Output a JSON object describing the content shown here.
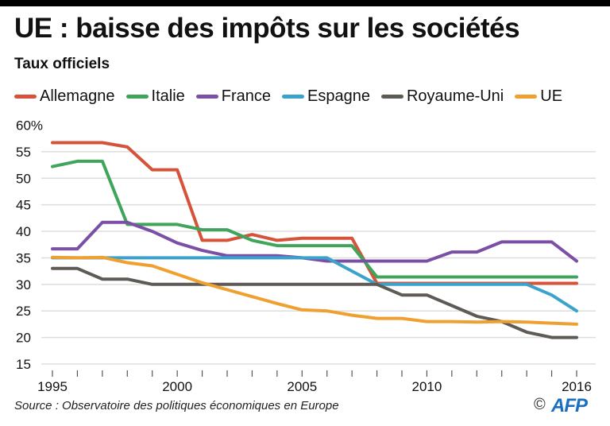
{
  "header": {
    "title": "UE : baisse des impôts sur les sociétés",
    "subtitle": "Taux officiels"
  },
  "footer": {
    "source": "Source : Observatoire des politiques économiques en Europe",
    "copyright": "©",
    "logo": "AFP"
  },
  "chart_data": {
    "type": "line",
    "title": "UE : baisse des impôts sur les sociétés",
    "subtitle": "Taux officiels",
    "xlabel": "",
    "ylabel": "",
    "x": [
      1995,
      1996,
      1997,
      1998,
      1999,
      2000,
      2001,
      2002,
      2003,
      2004,
      2005,
      2006,
      2007,
      2008,
      2009,
      2010,
      2011,
      2012,
      2013,
      2014,
      2015,
      2016
    ],
    "xticks": [
      1995,
      1996,
      1997,
      1998,
      1999,
      2000,
      2001,
      2002,
      2003,
      2004,
      2005,
      2006,
      2007,
      2008,
      2009,
      2010,
      2011,
      2012,
      2013,
      2014,
      2015,
      2016
    ],
    "xtick_labels": [
      {
        "year": 1995,
        "label": "1995"
      },
      {
        "year": 2000,
        "label": "2000"
      },
      {
        "year": 2005,
        "label": "2005"
      },
      {
        "year": 2010,
        "label": "2010"
      },
      {
        "year": 2016,
        "label": "2016"
      }
    ],
    "ylim": [
      15,
      60
    ],
    "yticks": [
      {
        "value": 60,
        "label": "60%"
      },
      {
        "value": 55,
        "label": "55"
      },
      {
        "value": 50,
        "label": "50"
      },
      {
        "value": 45,
        "label": "45"
      },
      {
        "value": 40,
        "label": "40"
      },
      {
        "value": 35,
        "label": "35"
      },
      {
        "value": 30,
        "label": "30"
      },
      {
        "value": 25,
        "label": "25"
      },
      {
        "value": 20,
        "label": "20"
      },
      {
        "value": 15,
        "label": "15"
      }
    ],
    "grid": true,
    "legend_position": "top",
    "series": [
      {
        "name": "Allemagne",
        "color": "#d5533a",
        "values": [
          56.7,
          56.7,
          56.7,
          55.9,
          51.6,
          51.6,
          38.3,
          38.3,
          39.4,
          38.3,
          38.7,
          38.7,
          38.7,
          30.2,
          30.2,
          30.2,
          30.2,
          30.2,
          30.2,
          30.2,
          30.2,
          30.2
        ]
      },
      {
        "name": "Italie",
        "color": "#3fa55b",
        "values": [
          52.2,
          53.2,
          53.2,
          41.3,
          41.3,
          41.3,
          40.3,
          40.3,
          38.3,
          37.3,
          37.3,
          37.3,
          37.3,
          31.4,
          31.4,
          31.4,
          31.4,
          31.4,
          31.4,
          31.4,
          31.4,
          31.4
        ]
      },
      {
        "name": "France",
        "color": "#7b4fa6",
        "values": [
          36.7,
          36.7,
          41.7,
          41.7,
          40.0,
          37.8,
          36.4,
          35.4,
          35.4,
          35.4,
          35.0,
          34.4,
          34.4,
          34.4,
          34.4,
          34.4,
          36.1,
          36.1,
          38.0,
          38.0,
          38.0,
          34.4
        ]
      },
      {
        "name": "Espagne",
        "color": "#3ba3cb",
        "values": [
          35,
          35,
          35,
          35,
          35,
          35,
          35,
          35,
          35,
          35,
          35,
          35,
          32.5,
          30,
          30,
          30,
          30,
          30,
          30,
          30,
          28,
          25
        ]
      },
      {
        "name": "Royaume-Uni",
        "color": "#5e5a55",
        "values": [
          33,
          33,
          31,
          31,
          30,
          30,
          30,
          30,
          30,
          30,
          30,
          30,
          30,
          30,
          28,
          28,
          26,
          24,
          23,
          21,
          20,
          20
        ]
      },
      {
        "name": "UE",
        "color": "#f0a030",
        "values": [
          35.1,
          35.0,
          35.1,
          34.1,
          33.5,
          31.9,
          30.3,
          29.0,
          27.7,
          26.4,
          25.2,
          25.0,
          24.2,
          23.6,
          23.6,
          23.0,
          23.0,
          22.9,
          23.0,
          22.9,
          22.7,
          22.5
        ]
      }
    ]
  }
}
